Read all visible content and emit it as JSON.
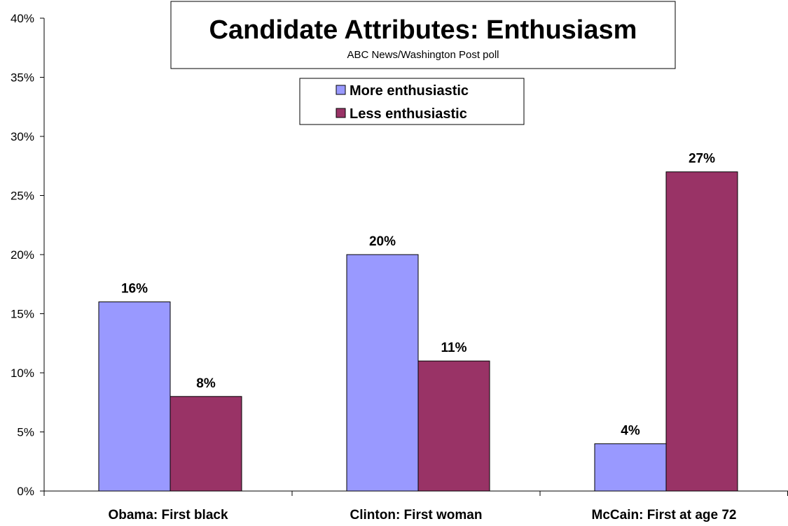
{
  "chart_data": {
    "type": "bar",
    "title": "Candidate Attributes: Enthusiasm",
    "subtitle": "ABC News/Washington Post poll",
    "categories": [
      "Obama: First black",
      "Clinton: First woman",
      "McCain: First at age 72"
    ],
    "series": [
      {
        "name": "More enthusiastic",
        "values": [
          16,
          20,
          4
        ],
        "labels": [
          "16%",
          "20%",
          "4%"
        ],
        "color": "#9999ff"
      },
      {
        "name": "Less enthusiastic",
        "values": [
          8,
          11,
          27
        ],
        "labels": [
          "8%",
          "11%",
          "27%"
        ],
        "color": "#993366"
      }
    ],
    "ylim": [
      0,
      40
    ],
    "yticks": [
      0,
      5,
      10,
      15,
      20,
      25,
      30,
      35,
      40
    ],
    "ytick_labels": [
      "0%",
      "5%",
      "10%",
      "15%",
      "20%",
      "25%",
      "30%",
      "35%",
      "40%"
    ],
    "xlabel": "",
    "ylabel": "",
    "grid": false,
    "legend_position": "top-center"
  }
}
